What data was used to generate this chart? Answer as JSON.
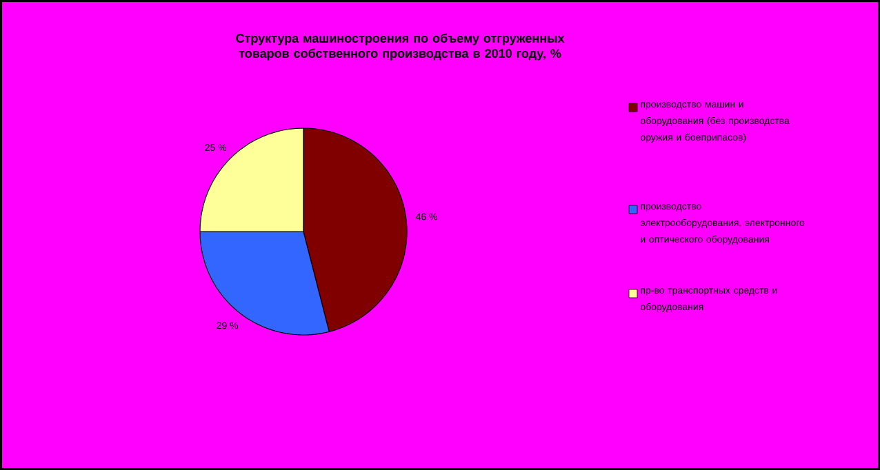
{
  "chart_data": {
    "type": "pie",
    "title": "Структура машиностроения по объему отгруженных товаров собственного производства в 2010 году, %",
    "categories": [
      "производство машин и оборудования (без производства оружия и боеприпасов)",
      "производство электрооборудования, электронного и оптического оборудования",
      "пр-во транспортных средств и оборудования"
    ],
    "values": [
      46,
      29,
      25
    ],
    "colors": [
      "#800000",
      "#3366ff",
      "#ffff99"
    ],
    "value_labels": [
      "46 %",
      "29 %",
      "25 %"
    ],
    "legend": "right"
  }
}
